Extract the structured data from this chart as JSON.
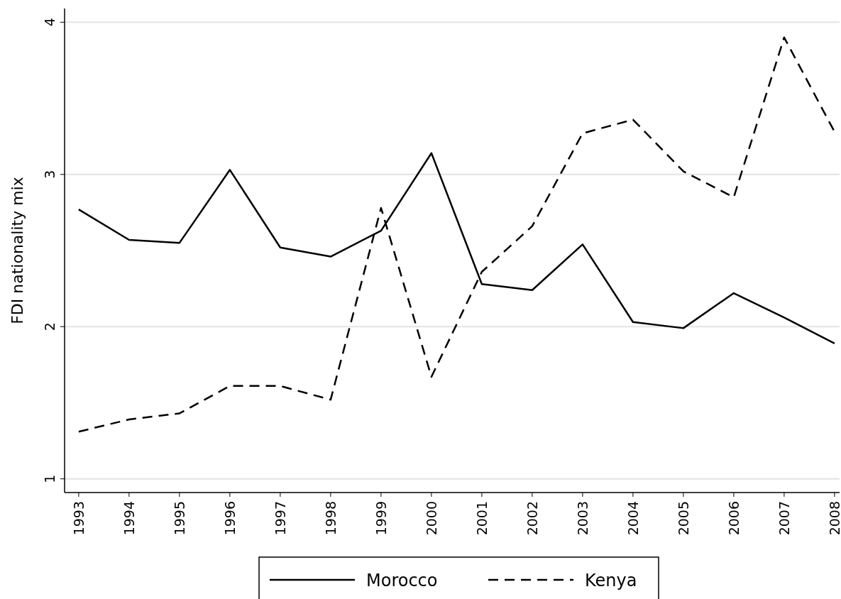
{
  "chart_data": {
    "type": "line",
    "ylabel": "FDI nationality mix",
    "x": [
      1993,
      1994,
      1995,
      1996,
      1997,
      1998,
      1999,
      2000,
      2001,
      2002,
      2003,
      2004,
      2005,
      2006,
      2007,
      2008
    ],
    "series": [
      {
        "name": "Morocco",
        "color": "#000000",
        "line_style": "solid",
        "values": [
          2.77,
          2.57,
          2.55,
          3.03,
          2.52,
          2.46,
          2.63,
          3.14,
          2.28,
          2.24,
          2.54,
          2.03,
          1.99,
          2.22,
          2.06,
          1.89
        ]
      },
      {
        "name": "Kenya",
        "color": "#000000",
        "line_style": "dashed",
        "values": [
          1.31,
          1.39,
          1.43,
          1.61,
          1.61,
          1.52,
          2.78,
          1.67,
          2.36,
          2.66,
          3.27,
          3.36,
          3.02,
          2.85,
          3.9,
          3.28
        ]
      }
    ],
    "xlim": [
      1992.72,
      2008.1
    ],
    "xticks": [
      1993,
      1994,
      1995,
      1996,
      1997,
      1998,
      1999,
      2000,
      2001,
      2002,
      2003,
      2004,
      2005,
      2006,
      2007,
      2008
    ],
    "ylim": [
      0.91,
      4.09
    ],
    "yticks": [
      1,
      2,
      3,
      4
    ],
    "grid": "y",
    "legend": "bottom"
  }
}
